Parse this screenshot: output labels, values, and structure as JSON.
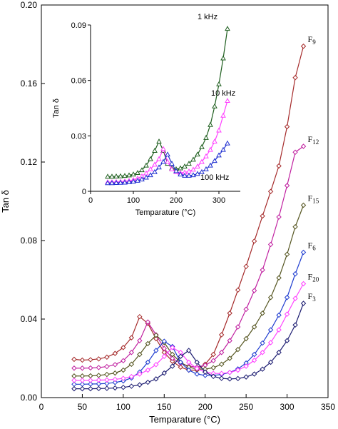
{
  "chart_data": [
    {
      "type": "line",
      "xlabel": "Temparature (°C)",
      "ylabel": "Tan δ",
      "xlim": [
        0,
        350
      ],
      "ylim": [
        0,
        0.2
      ],
      "xticks": [
        "0",
        "50",
        "100",
        "150",
        "200",
        "250",
        "300",
        "350"
      ],
      "yticks": [
        "0.00",
        "0.04",
        "0.08",
        "0.12",
        "0.16",
        "0.20"
      ],
      "grid": false,
      "legend": "inline labels at line ends",
      "marker": "diamond",
      "series": [
        {
          "name": "F",
          "sub": "9",
          "color": "#a52a2a",
          "x": [
            40,
            50,
            60,
            70,
            80,
            90,
            100,
            110,
            120,
            130,
            140,
            150,
            160,
            170,
            180,
            190,
            200,
            210,
            220,
            230,
            240,
            250,
            260,
            270,
            280,
            290,
            300,
            310,
            320
          ],
          "y": [
            0.0195,
            0.0191,
            0.0193,
            0.0197,
            0.0206,
            0.0225,
            0.0255,
            0.0305,
            0.0412,
            0.0378,
            0.03,
            0.023,
            0.0185,
            0.0155,
            0.014,
            0.014,
            0.017,
            0.022,
            0.032,
            0.043,
            0.0548,
            0.0668,
            0.0797,
            0.0925,
            0.105,
            0.118,
            0.138,
            0.163,
            0.179
          ]
        },
        {
          "name": "F",
          "sub": "12",
          "color": "#c020a0",
          "x": [
            40,
            50,
            60,
            70,
            80,
            90,
            100,
            110,
            120,
            130,
            140,
            150,
            160,
            170,
            180,
            190,
            200,
            210,
            220,
            230,
            240,
            250,
            260,
            270,
            280,
            290,
            300,
            310,
            320
          ],
          "y": [
            0.015,
            0.015,
            0.0151,
            0.0153,
            0.0158,
            0.0168,
            0.0188,
            0.023,
            0.029,
            0.0385,
            0.032,
            0.025,
            0.02,
            0.0175,
            0.016,
            0.0155,
            0.0165,
            0.0188,
            0.023,
            0.029,
            0.036,
            0.045,
            0.0545,
            0.065,
            0.078,
            0.092,
            0.108,
            0.125,
            0.128
          ]
        },
        {
          "name": "F",
          "sub": "15",
          "color": "#555520",
          "x": [
            40,
            50,
            60,
            70,
            80,
            90,
            100,
            110,
            120,
            130,
            140,
            150,
            160,
            170,
            180,
            190,
            200,
            210,
            220,
            230,
            240,
            250,
            260,
            270,
            280,
            290,
            300,
            310,
            320
          ],
          "y": [
            0.011,
            0.011,
            0.0111,
            0.0113,
            0.0118,
            0.0125,
            0.014,
            0.017,
            0.022,
            0.0275,
            0.0318,
            0.028,
            0.022,
            0.018,
            0.0155,
            0.0145,
            0.0145,
            0.0152,
            0.017,
            0.02,
            0.0245,
            0.03,
            0.036,
            0.043,
            0.051,
            0.061,
            0.073,
            0.087,
            0.098
          ]
        },
        {
          "name": "F",
          "sub": "6",
          "color": "#1e3cd0",
          "x": [
            40,
            50,
            60,
            70,
            80,
            90,
            100,
            110,
            120,
            130,
            140,
            150,
            160,
            170,
            180,
            190,
            200,
            210,
            220,
            230,
            240,
            250,
            260,
            270,
            280,
            290,
            300,
            310,
            320
          ],
          "y": [
            0.0068,
            0.0068,
            0.0069,
            0.007,
            0.0072,
            0.0077,
            0.0085,
            0.01,
            0.013,
            0.018,
            0.024,
            0.0287,
            0.026,
            0.018,
            0.014,
            0.012,
            0.0113,
            0.0113,
            0.0118,
            0.0128,
            0.0146,
            0.0176,
            0.022,
            0.0278,
            0.0345,
            0.042,
            0.051,
            0.063,
            0.074
          ]
        },
        {
          "name": "F",
          "sub": "20",
          "color": "#ff40ff",
          "x": [
            40,
            50,
            60,
            70,
            80,
            90,
            100,
            110,
            120,
            130,
            140,
            150,
            160,
            170,
            180,
            190,
            200,
            210,
            220,
            230,
            240,
            250,
            260,
            270,
            280,
            290,
            300,
            310,
            320
          ],
          "y": [
            0.0088,
            0.0088,
            0.0088,
            0.0089,
            0.009,
            0.0093,
            0.0098,
            0.0107,
            0.012,
            0.014,
            0.0168,
            0.021,
            0.0255,
            0.023,
            0.018,
            0.0148,
            0.013,
            0.0123,
            0.0123,
            0.0128,
            0.014,
            0.016,
            0.019,
            0.023,
            0.028,
            0.0345,
            0.0425,
            0.0505,
            0.058
          ]
        },
        {
          "name": "F",
          "sub": "3",
          "color": "#1a1a70",
          "x": [
            40,
            50,
            60,
            70,
            80,
            90,
            100,
            110,
            120,
            130,
            140,
            150,
            160,
            170,
            180,
            190,
            200,
            210,
            220,
            230,
            240,
            250,
            260,
            270,
            280,
            290,
            300,
            310,
            320
          ],
          "y": [
            0.0045,
            0.0045,
            0.0045,
            0.0046,
            0.0047,
            0.0049,
            0.0052,
            0.0058,
            0.0065,
            0.0078,
            0.0095,
            0.0125,
            0.016,
            0.021,
            0.024,
            0.018,
            0.013,
            0.0108,
            0.0098,
            0.0095,
            0.0097,
            0.0105,
            0.012,
            0.0145,
            0.018,
            0.023,
            0.029,
            0.037,
            0.048
          ]
        }
      ]
    },
    {
      "type": "line",
      "inset": true,
      "xlabel": "Temparature (°C)",
      "ylabel": "Tan δ",
      "xlim": [
        0,
        350
      ],
      "ylim": [
        0,
        0.09
      ],
      "xticks": [
        "0",
        "100",
        "200",
        "300"
      ],
      "yticks": [
        "0",
        "0.03",
        "0.06",
        "0.09"
      ],
      "grid": false,
      "marker": "triangle",
      "series": [
        {
          "name": "1 kHz",
          "color": "#1e5e1e",
          "x": [
            40,
            50,
            60,
            70,
            80,
            90,
            100,
            110,
            120,
            130,
            140,
            150,
            160,
            170,
            180,
            190,
            200,
            210,
            220,
            230,
            240,
            250,
            260,
            270,
            280,
            290,
            300,
            310,
            320
          ],
          "y": [
            0.008,
            0.008,
            0.0081,
            0.0082,
            0.0084,
            0.0087,
            0.0092,
            0.01,
            0.0115,
            0.014,
            0.0175,
            0.022,
            0.027,
            0.022,
            0.015,
            0.0125,
            0.012,
            0.0125,
            0.0135,
            0.015,
            0.0172,
            0.02,
            0.024,
            0.029,
            0.036,
            0.046,
            0.058,
            0.072,
            0.088
          ]
        },
        {
          "name": "10 kHz",
          "color": "#ff40ff",
          "x": [
            40,
            50,
            60,
            70,
            80,
            90,
            100,
            110,
            120,
            130,
            140,
            150,
            160,
            170,
            180,
            190,
            200,
            210,
            220,
            230,
            240,
            250,
            260,
            270,
            280,
            290,
            300,
            310,
            320
          ],
          "y": [
            0.005,
            0.005,
            0.0051,
            0.0052,
            0.0054,
            0.0057,
            0.0062,
            0.007,
            0.0082,
            0.0098,
            0.012,
            0.0145,
            0.0175,
            0.023,
            0.016,
            0.012,
            0.0105,
            0.01,
            0.0102,
            0.0108,
            0.0118,
            0.0135,
            0.016,
            0.019,
            0.0225,
            0.027,
            0.033,
            0.041,
            0.049
          ]
        },
        {
          "name": "100 kHz",
          "color": "#2030d0",
          "x": [
            40,
            50,
            60,
            70,
            80,
            90,
            100,
            110,
            120,
            130,
            140,
            150,
            160,
            170,
            180,
            190,
            200,
            210,
            220,
            230,
            240,
            250,
            260,
            270,
            280,
            290,
            300,
            310,
            320
          ],
          "y": [
            0.0045,
            0.0045,
            0.0046,
            0.0047,
            0.0048,
            0.005,
            0.0053,
            0.0058,
            0.0065,
            0.0075,
            0.0088,
            0.0105,
            0.013,
            0.016,
            0.02,
            0.015,
            0.011,
            0.0092,
            0.0085,
            0.0085,
            0.0088,
            0.0095,
            0.0105,
            0.012,
            0.014,
            0.0165,
            0.0195,
            0.0225,
            0.026
          ]
        }
      ]
    }
  ]
}
